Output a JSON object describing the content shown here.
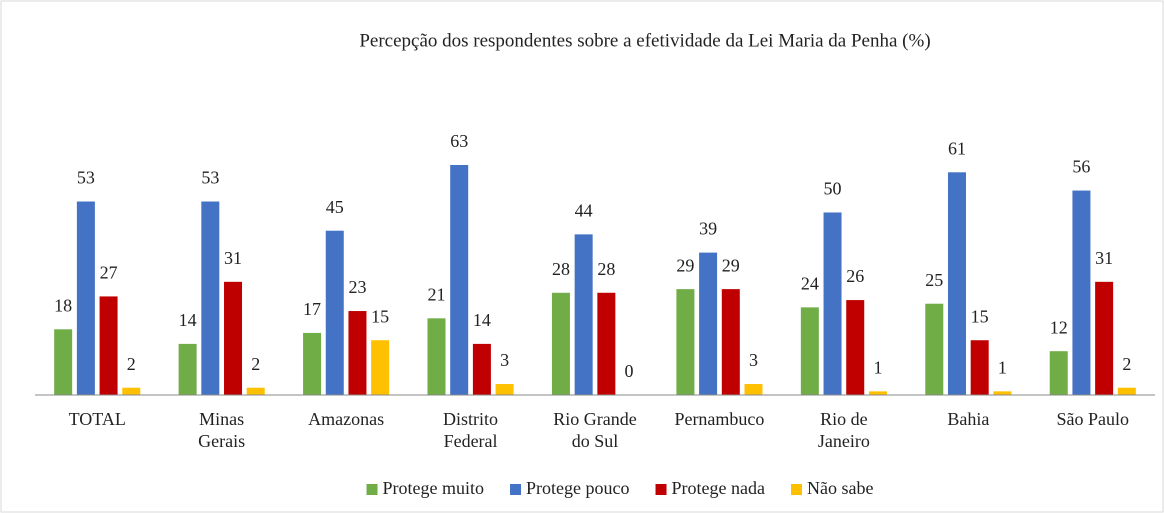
{
  "chart_data": {
    "type": "bar",
    "title": "Percepção dos respondentes sobre a efetividade da Lei Maria da Penha (%)",
    "categories": [
      "TOTAL",
      "Minas\nGerais",
      "Amazonas",
      "Distrito\nFederal",
      "Rio Grande\ndo Sul",
      "Pernambuco",
      "Rio de\nJaneiro",
      "Bahia",
      "São Paulo"
    ],
    "series": [
      {
        "name": "Protege muito",
        "color": "#70ad47",
        "values": [
          18,
          14,
          17,
          21,
          28,
          29,
          24,
          25,
          12
        ]
      },
      {
        "name": "Protege pouco",
        "color": "#4472c4",
        "values": [
          53,
          53,
          45,
          63,
          44,
          39,
          50,
          61,
          56
        ]
      },
      {
        "name": "Protege nada",
        "color": "#c00000",
        "values": [
          27,
          31,
          23,
          14,
          28,
          29,
          26,
          15,
          31
        ]
      },
      {
        "name": "Não sabe",
        "color": "#ffc000",
        "values": [
          2,
          2,
          15,
          3,
          0,
          3,
          1,
          1,
          2
        ]
      }
    ],
    "legend": "bottom"
  }
}
